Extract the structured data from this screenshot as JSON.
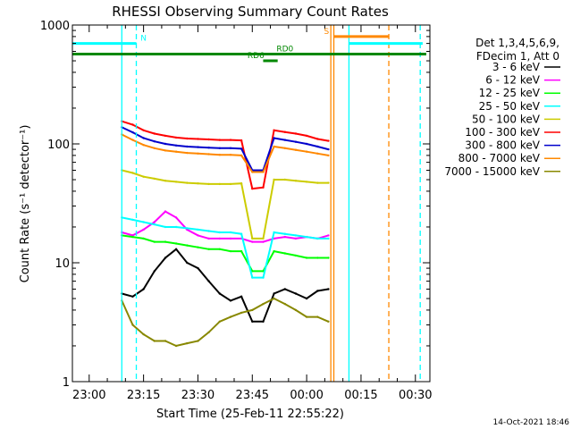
{
  "chart_data": {
    "type": "line",
    "title": "RHESSI Observing Summary Count Rates",
    "xlabel": "Start Time (25-Feb-11 22:55:22)",
    "ylabel": "Count Rate (s⁻¹ detector⁻¹)",
    "ylog": true,
    "ylim": [
      1,
      1000
    ],
    "xlim": [
      "22:55:22",
      "00:34:00"
    ],
    "x_ticks": [
      "23:00",
      "23:15",
      "23:30",
      "23:45",
      "00:00",
      "00:15",
      "00:30"
    ],
    "y_ticks": [
      "1",
      "10",
      "100",
      "1000"
    ],
    "legend_header": [
      "Det 1,3,4,5,6,9,",
      "FDecim 1, Att 0"
    ],
    "legend_position": "right",
    "footer_date": "14-Oct-2021 18:46",
    "data_gaps": [
      [
        "22:55:22",
        "23:09:00"
      ],
      [
        "00:07:00",
        "00:34:00"
      ]
    ],
    "series": [
      {
        "name": "3 - 6 keV",
        "color": "#000000",
        "points": [
          [
            "23:09",
            5.5
          ],
          [
            "23:12",
            5.2
          ],
          [
            "23:15",
            6.0
          ],
          [
            "23:18",
            8.5
          ],
          [
            "23:21",
            11.0
          ],
          [
            "23:24",
            13.0
          ],
          [
            "23:27",
            10.0
          ],
          [
            "23:30",
            9.0
          ],
          [
            "23:33",
            7.0
          ],
          [
            "23:36",
            5.5
          ],
          [
            "23:39",
            4.8
          ],
          [
            "23:42",
            5.2
          ],
          [
            "23:45",
            3.2
          ],
          [
            "23:48",
            3.2
          ],
          [
            "23:51",
            5.5
          ],
          [
            "23:54",
            6.0
          ],
          [
            "23:57",
            5.5
          ],
          [
            "00:00",
            5.0
          ],
          [
            "00:03",
            5.8
          ],
          [
            "00:06",
            6.0
          ]
        ]
      },
      {
        "name": "6 - 12 keV",
        "color": "#ff00ff",
        "points": [
          [
            "23:09",
            18
          ],
          [
            "23:12",
            17
          ],
          [
            "23:15",
            19
          ],
          [
            "23:18",
            22
          ],
          [
            "23:21",
            27
          ],
          [
            "23:24",
            24
          ],
          [
            "23:27",
            19
          ],
          [
            "23:30",
            17
          ],
          [
            "23:33",
            16
          ],
          [
            "23:36",
            16
          ],
          [
            "23:39",
            16
          ],
          [
            "23:42",
            16
          ],
          [
            "23:45",
            15
          ],
          [
            "23:48",
            15
          ],
          [
            "23:51",
            16
          ],
          [
            "23:54",
            16.5
          ],
          [
            "23:57",
            16
          ],
          [
            "00:00",
            16.5
          ],
          [
            "00:03",
            16
          ],
          [
            "00:06",
            17
          ]
        ]
      },
      {
        "name": "12 - 25 keV",
        "color": "#00ff00",
        "points": [
          [
            "23:09",
            17
          ],
          [
            "23:12",
            16.5
          ],
          [
            "23:15",
            16
          ],
          [
            "23:18",
            15
          ],
          [
            "23:21",
            15
          ],
          [
            "23:24",
            14.5
          ],
          [
            "23:27",
            14
          ],
          [
            "23:30",
            13.5
          ],
          [
            "23:33",
            13
          ],
          [
            "23:36",
            13
          ],
          [
            "23:39",
            12.5
          ],
          [
            "23:42",
            12.5
          ],
          [
            "23:45",
            8.5
          ],
          [
            "23:48",
            8.5
          ],
          [
            "23:51",
            12.5
          ],
          [
            "23:54",
            12
          ],
          [
            "23:57",
            11.5
          ],
          [
            "00:00",
            11
          ],
          [
            "00:03",
            11
          ],
          [
            "00:06",
            11
          ]
        ]
      },
      {
        "name": "25 - 50 keV",
        "color": "#00ffff",
        "points": [
          [
            "23:09",
            24
          ],
          [
            "23:12",
            23
          ],
          [
            "23:15",
            22
          ],
          [
            "23:18",
            21
          ],
          [
            "23:21",
            20
          ],
          [
            "23:24",
            20
          ],
          [
            "23:27",
            19.5
          ],
          [
            "23:30",
            19
          ],
          [
            "23:33",
            18.5
          ],
          [
            "23:36",
            18
          ],
          [
            "23:39",
            18
          ],
          [
            "23:42",
            17.5
          ],
          [
            "23:45",
            7.5
          ],
          [
            "23:48",
            7.5
          ],
          [
            "23:51",
            18
          ],
          [
            "23:54",
            17.5
          ],
          [
            "23:57",
            17
          ],
          [
            "00:00",
            16.5
          ],
          [
            "00:03",
            16
          ],
          [
            "00:06",
            16
          ]
        ]
      },
      {
        "name": "50 - 100 keV",
        "color": "#cccc00",
        "points": [
          [
            "23:09",
            60
          ],
          [
            "23:12",
            57
          ],
          [
            "23:15",
            53
          ],
          [
            "23:18",
            51
          ],
          [
            "23:21",
            49
          ],
          [
            "23:24",
            48
          ],
          [
            "23:27",
            47
          ],
          [
            "23:30",
            46.5
          ],
          [
            "23:33",
            46
          ],
          [
            "23:36",
            46
          ],
          [
            "23:39",
            46
          ],
          [
            "23:42",
            46.5
          ],
          [
            "23:45",
            16
          ],
          [
            "23:48",
            16
          ],
          [
            "23:51",
            50
          ],
          [
            "23:54",
            50
          ],
          [
            "23:57",
            49
          ],
          [
            "00:00",
            48
          ],
          [
            "00:03",
            47
          ],
          [
            "00:06",
            47
          ]
        ]
      },
      {
        "name": "100 - 300 keV",
        "color": "#ff0000",
        "points": [
          [
            "23:09",
            155
          ],
          [
            "23:12",
            145
          ],
          [
            "23:15",
            130
          ],
          [
            "23:18",
            122
          ],
          [
            "23:21",
            117
          ],
          [
            "23:24",
            113
          ],
          [
            "23:27",
            111
          ],
          [
            "23:30",
            110
          ],
          [
            "23:33",
            109
          ],
          [
            "23:36",
            108
          ],
          [
            "23:39",
            108
          ],
          [
            "23:42",
            107
          ],
          [
            "23:45",
            42
          ],
          [
            "23:48",
            43
          ],
          [
            "23:51",
            130
          ],
          [
            "23:54",
            126
          ],
          [
            "23:57",
            122
          ],
          [
            "00:00",
            117
          ],
          [
            "00:03",
            110
          ],
          [
            "00:06",
            106
          ]
        ]
      },
      {
        "name": "300 - 800 keV",
        "color": "#0000cc",
        "points": [
          [
            "23:09",
            138
          ],
          [
            "23:12",
            125
          ],
          [
            "23:15",
            112
          ],
          [
            "23:18",
            105
          ],
          [
            "23:21",
            100
          ],
          [
            "23:24",
            97
          ],
          [
            "23:27",
            95
          ],
          [
            "23:30",
            94
          ],
          [
            "23:33",
            93
          ],
          [
            "23:36",
            92
          ],
          [
            "23:39",
            92
          ],
          [
            "23:42",
            91
          ],
          [
            "23:45",
            60
          ],
          [
            "23:48",
            60
          ],
          [
            "23:51",
            112
          ],
          [
            "23:54",
            108
          ],
          [
            "23:57",
            104
          ],
          [
            "00:00",
            100
          ],
          [
            "00:03",
            95
          ],
          [
            "00:06",
            90
          ]
        ]
      },
      {
        "name": "800 - 7000 keV",
        "color": "#ff8800",
        "points": [
          [
            "23:09",
            120
          ],
          [
            "23:12",
            108
          ],
          [
            "23:15",
            98
          ],
          [
            "23:18",
            92
          ],
          [
            "23:21",
            88
          ],
          [
            "23:24",
            86
          ],
          [
            "23:27",
            84
          ],
          [
            "23:30",
            83
          ],
          [
            "23:33",
            82
          ],
          [
            "23:36",
            81
          ],
          [
            "23:39",
            81
          ],
          [
            "23:42",
            80
          ],
          [
            "23:45",
            58
          ],
          [
            "23:48",
            58
          ],
          [
            "23:51",
            95
          ],
          [
            "23:54",
            92
          ],
          [
            "23:57",
            89
          ],
          [
            "00:00",
            86
          ],
          [
            "00:03",
            83
          ],
          [
            "00:06",
            80
          ]
        ]
      },
      {
        "name": "7000 - 15000 keV",
        "color": "#888800",
        "points": [
          [
            "23:09",
            4.8
          ],
          [
            "23:12",
            3.0
          ],
          [
            "23:15",
            2.5
          ],
          [
            "23:18",
            2.2
          ],
          [
            "23:21",
            2.2
          ],
          [
            "23:24",
            2.0
          ],
          [
            "23:27",
            2.1
          ],
          [
            "23:30",
            2.2
          ],
          [
            "23:33",
            2.6
          ],
          [
            "23:36",
            3.2
          ],
          [
            "23:39",
            3.5
          ],
          [
            "23:42",
            3.8
          ],
          [
            "23:45",
            4.0
          ],
          [
            "23:48",
            4.5
          ],
          [
            "23:51",
            5.0
          ],
          [
            "23:54",
            4.5
          ],
          [
            "23:57",
            4.0
          ],
          [
            "00:00",
            3.5
          ],
          [
            "00:03",
            3.5
          ],
          [
            "00:06",
            3.2
          ]
        ]
      }
    ],
    "annotations": {
      "verticals": [
        {
          "time": "23:09:00",
          "color": "#00ffff",
          "style": "solid"
        },
        {
          "time": "23:13:00",
          "color": "#00ffff",
          "style": "dashed"
        },
        {
          "time": "00:06:40",
          "color": "#ff8800",
          "style": "solid"
        },
        {
          "time": "00:07:30",
          "color": "#ff8800",
          "style": "solid"
        },
        {
          "time": "00:11:40",
          "color": "#00ffff",
          "style": "solid"
        },
        {
          "time": "00:22:40",
          "color": "#ff8800",
          "style": "dashed"
        },
        {
          "time": "00:31:20",
          "color": "#00ffff",
          "style": "dashed"
        }
      ],
      "bars": [
        {
          "label": "N",
          "color": "#00ffff",
          "y": 700,
          "segments": [
            [
              "22:55:22",
              "23:13:00"
            ],
            [
              "00:11:40",
              "00:32:00"
            ]
          ],
          "label_at": "23:15:00"
        },
        {
          "label": "S",
          "color": "#ff8800",
          "y": 800,
          "segments": [
            [
              "00:07:30",
              "00:22:40"
            ]
          ],
          "label_at": "00:05:30"
        },
        {
          "label": "RD0",
          "color": "#008800",
          "y": 570,
          "segments": [
            [
              "22:55:22",
              "00:33:00"
            ]
          ],
          "label_at": "23:54:00"
        },
        {
          "label": "RD6",
          "color": "#008800",
          "y": 500,
          "segments": [
            [
              "23:48:00",
              "23:52:00"
            ]
          ],
          "label_at": "23:46:00"
        }
      ]
    }
  }
}
